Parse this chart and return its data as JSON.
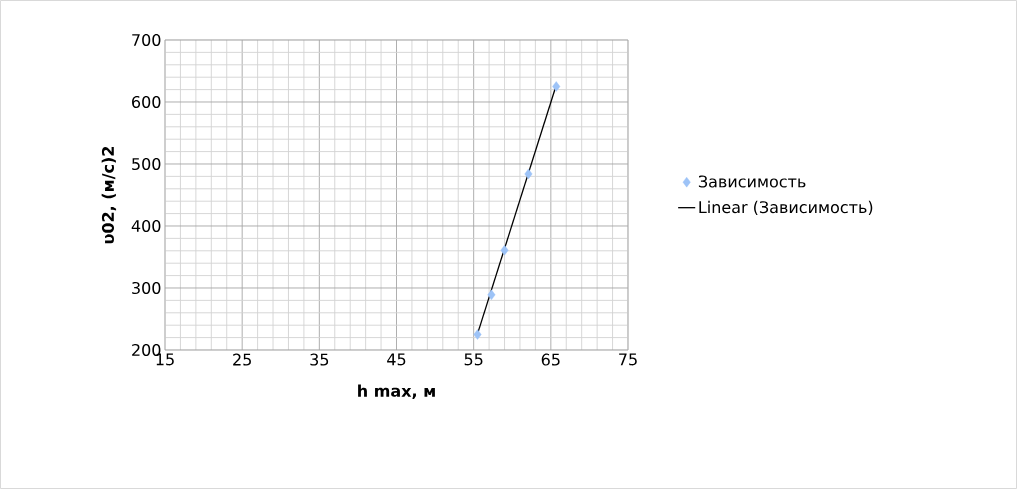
{
  "chart_data": {
    "type": "scatter",
    "xlabel": "h max, м",
    "ylabel": "υ02, (м/с)2",
    "xlim": [
      15,
      75
    ],
    "ylim": [
      200,
      700
    ],
    "xticks": [
      15,
      25,
      35,
      45,
      55,
      65,
      75
    ],
    "yticks": [
      200,
      300,
      400,
      500,
      600,
      700
    ],
    "grid": true,
    "legend": "right",
    "marker": "diamond",
    "series": [
      {
        "name": "Зависимость",
        "color": "#9dc3f7",
        "x": [
          55.5,
          57.3,
          59.0,
          62.1,
          65.7
        ],
        "values": [
          225,
          289,
          361,
          484,
          625
        ]
      },
      {
        "name": "Linear (Зависимость)",
        "type": "line",
        "marker": "none",
        "color": "#000000",
        "x": [
          55.5,
          65.7
        ],
        "values": [
          226,
          627
        ]
      }
    ]
  }
}
